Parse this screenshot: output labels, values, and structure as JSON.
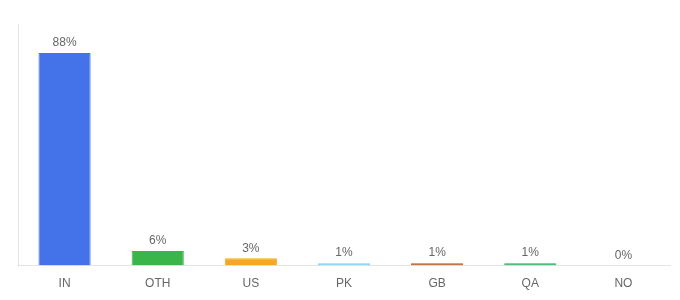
{
  "chart_data": {
    "type": "bar",
    "categories": [
      "IN",
      "OTH",
      "US",
      "PK",
      "GB",
      "QA",
      "NO"
    ],
    "values": [
      88,
      6,
      3,
      1,
      1,
      1,
      0
    ],
    "value_labels": [
      "88%",
      "6%",
      "3%",
      "1%",
      "1%",
      "1%",
      "0%"
    ],
    "colors": [
      "#4472e8",
      "#3ab54a",
      "#f5a623",
      "#7ecef4",
      "#b35a1a",
      "#27ae60",
      "#ffffff"
    ],
    "ylim": [
      0,
      100
    ],
    "data_labels": true,
    "tick_labels": "x",
    "grid": false
  }
}
